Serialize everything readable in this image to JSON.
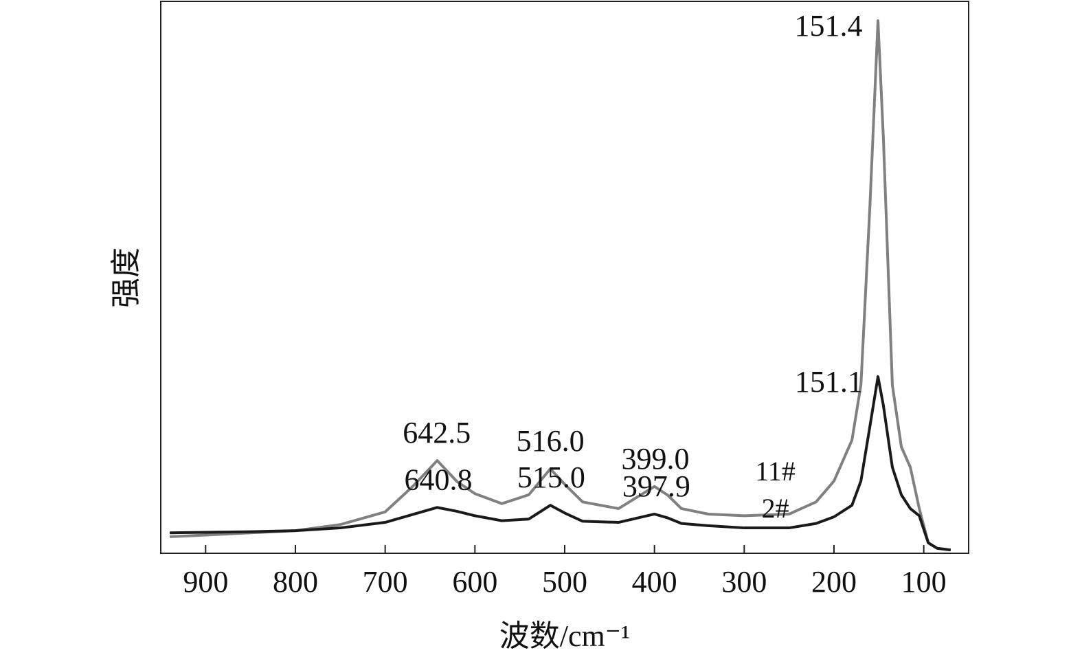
{
  "chart_data": {
    "type": "line",
    "x_label": "波数/cm⁻¹",
    "y_label": "强度",
    "xlim": [
      950,
      50
    ],
    "ylim": [
      0,
      100
    ],
    "xticks": [
      900,
      800,
      700,
      600,
      500,
      400,
      300,
      200,
      100
    ],
    "x": [
      940,
      900,
      850,
      800,
      750,
      700,
      670,
      642,
      620,
      600,
      570,
      540,
      516,
      500,
      480,
      440,
      400,
      385,
      370,
      340,
      300,
      250,
      220,
      200,
      180,
      170,
      160,
      151,
      145,
      135,
      125,
      115,
      105,
      95,
      85,
      70
    ],
    "series": [
      {
        "name": "11#",
        "color": "#808080",
        "values": [
          3.0,
          3.3,
          3.7,
          4.1,
          5.2,
          7.5,
          12,
          16.8,
          13,
          10.8,
          9,
          10.6,
          15.3,
          12.5,
          9.3,
          8.1,
          12.1,
          10.5,
          8.1,
          7.1,
          6.8,
          7.1,
          9.3,
          13.1,
          20.5,
          30.5,
          62.9,
          96.5,
          75.3,
          30.5,
          19.3,
          15.6,
          8.1,
          1.9,
          0.9,
          0.6
        ],
        "peaks": [
          {
            "value": 642.5,
            "label": "642.5"
          },
          {
            "value": 516,
            "label": "516.0"
          },
          {
            "value": 399,
            "label": "399.0"
          },
          {
            "value": 151.4,
            "label": "151.4"
          }
        ]
      },
      {
        "name": "2#",
        "color": "#1a1a1a",
        "values": [
          3.7,
          3.8,
          3.9,
          4.1,
          4.6,
          5.6,
          7,
          8.3,
          7.6,
          6.8,
          5.9,
          6.2,
          8.7,
          7.3,
          5.8,
          5.6,
          7.1,
          6.4,
          5.4,
          5.0,
          4.6,
          4.6,
          5.4,
          6.6,
          8.7,
          13.1,
          23,
          32,
          26.8,
          15.6,
          10.6,
          8.1,
          6.8,
          1.9,
          0.9,
          0.6
        ],
        "peaks": [
          {
            "value": 640.8,
            "label": "640.8"
          },
          {
            "value": 515,
            "label": "515.0"
          },
          {
            "value": 397.9,
            "label": "397.9"
          },
          {
            "value": 151.1,
            "label": "151.1"
          }
        ]
      }
    ]
  }
}
